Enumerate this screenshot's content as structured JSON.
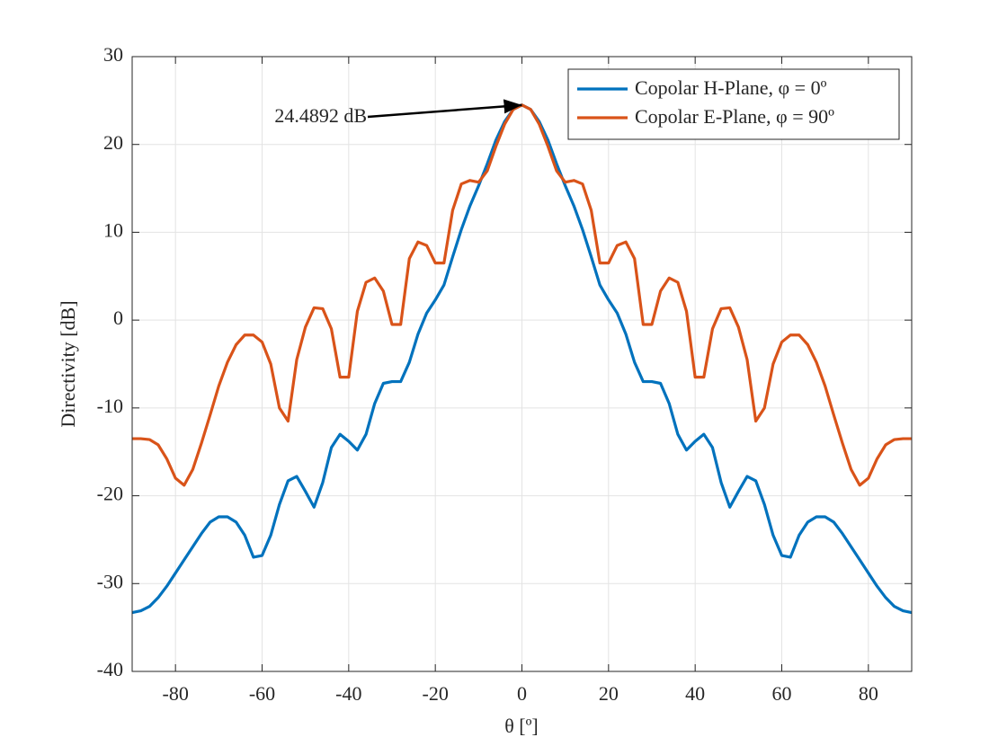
{
  "chart_data": {
    "type": "line",
    "xlabel": "θ [º]",
    "ylabel": "Directivity [dB]",
    "xlim": [
      -90,
      90
    ],
    "xticks": [
      -80,
      -60,
      -40,
      -20,
      0,
      20,
      40,
      60,
      80
    ],
    "ylim": [
      -40,
      30
    ],
    "yticks": [
      -40,
      -30,
      -20,
      -10,
      0,
      10,
      20,
      30
    ],
    "grid": true,
    "legend": "top-right",
    "annotation": {
      "text": "24.4892 dB",
      "x": 0,
      "y": 24.4892
    },
    "x": [
      -90,
      -88,
      -86,
      -84,
      -82,
      -80,
      -78,
      -76,
      -74,
      -72,
      -70,
      -68,
      -66,
      -64,
      -62,
      -60,
      -58,
      -56,
      -54,
      -52,
      -50,
      -48,
      -46,
      -44,
      -42,
      -40,
      -38,
      -36,
      -34,
      -32,
      -30,
      -28,
      -26,
      -24,
      -22,
      -20,
      -18,
      -16,
      -14,
      -12,
      -10,
      -8,
      -6,
      -4,
      -2,
      0,
      2,
      4,
      6,
      8,
      10,
      12,
      14,
      16,
      18,
      20,
      22,
      24,
      26,
      28,
      30,
      32,
      34,
      36,
      38,
      40,
      42,
      44,
      46,
      48,
      50,
      52,
      54,
      56,
      58,
      60,
      62,
      64,
      66,
      68,
      70,
      72,
      74,
      76,
      78,
      80,
      82,
      84,
      86,
      88,
      90
    ],
    "series": [
      {
        "name": "Copolar H-Plane, φ = 0º",
        "color": "#0072BD",
        "values": [
          -33.3,
          -33.1,
          -32.6,
          -31.6,
          -30.3,
          -28.8,
          -27.3,
          -25.8,
          -24.3,
          -23.0,
          -22.4,
          -22.4,
          -23.0,
          -24.5,
          -27.0,
          -26.8,
          -24.5,
          -21.0,
          -18.3,
          -17.8,
          -19.5,
          -21.3,
          -18.5,
          -14.5,
          -13.0,
          -13.8,
          -14.8,
          -13.0,
          -9.5,
          -7.2,
          -7.0,
          -7.0,
          -4.8,
          -1.6,
          0.8,
          2.3,
          4.0,
          7.2,
          10.3,
          13.0,
          15.3,
          17.8,
          20.5,
          22.6,
          24.0,
          24.4892,
          24.0,
          22.6,
          20.5,
          17.8,
          15.3,
          13.0,
          10.3,
          7.2,
          4.0,
          2.3,
          0.8,
          -1.6,
          -4.8,
          -7.0,
          -7.0,
          -7.2,
          -9.5,
          -13.0,
          -14.8,
          -13.8,
          -13.0,
          -14.5,
          -18.5,
          -21.3,
          -19.5,
          -17.8,
          -18.3,
          -21.0,
          -24.5,
          -26.8,
          -27.0,
          -24.5,
          -23.0,
          -22.4,
          -22.4,
          -23.0,
          -24.3,
          -25.8,
          -27.3,
          -28.8,
          -30.3,
          -31.6,
          -32.6,
          -33.1,
          -33.3
        ]
      },
      {
        "name": "Copolar E-Plane, φ = 90º",
        "color": "#D95319",
        "values": [
          -13.5,
          -13.5,
          -13.6,
          -14.2,
          -15.8,
          -18.0,
          -18.8,
          -17.0,
          -14.0,
          -10.8,
          -7.5,
          -4.8,
          -2.8,
          -1.7,
          -1.7,
          -2.5,
          -5.0,
          -10.0,
          -11.5,
          -4.5,
          -0.8,
          1.4,
          1.3,
          -1.0,
          -6.5,
          -6.5,
          1.0,
          4.3,
          4.8,
          3.3,
          -0.5,
          -0.5,
          7.0,
          8.9,
          8.5,
          6.5,
          6.5,
          12.5,
          15.5,
          15.9,
          15.7,
          17.0,
          19.8,
          22.3,
          24.0,
          24.4892,
          24.0,
          22.3,
          19.8,
          17.0,
          15.7,
          15.9,
          15.5,
          12.5,
          6.5,
          6.5,
          8.5,
          8.9,
          7.0,
          -0.5,
          -0.5,
          3.3,
          4.8,
          4.3,
          1.0,
          -6.5,
          -6.5,
          -1.0,
          1.3,
          1.4,
          -0.8,
          -4.5,
          -11.5,
          -10.0,
          -5.0,
          -2.5,
          -1.7,
          -1.7,
          -2.8,
          -4.8,
          -7.5,
          -10.8,
          -14.0,
          -17.0,
          -18.8,
          -18.0,
          -15.8,
          -14.2,
          -13.6,
          -13.5,
          -13.5
        ]
      }
    ]
  }
}
